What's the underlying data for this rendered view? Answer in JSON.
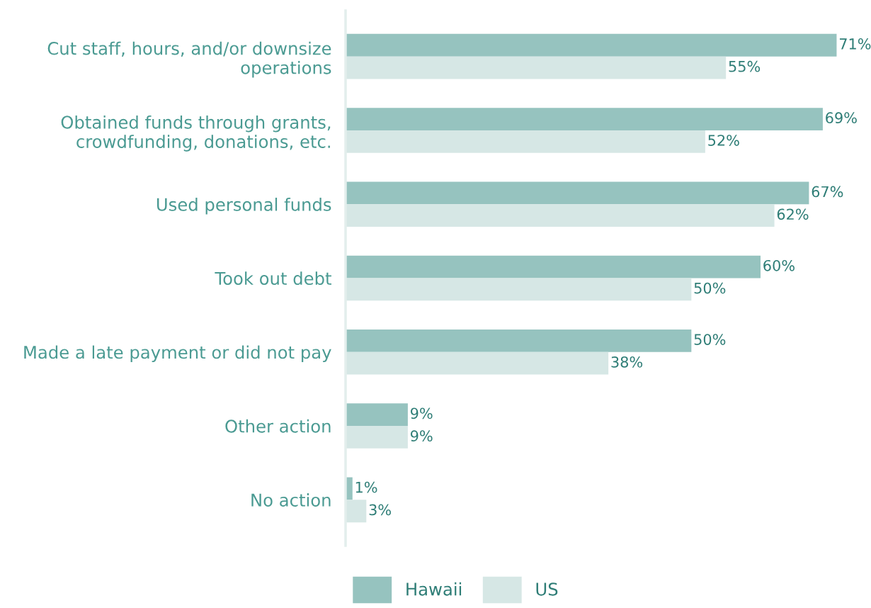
{
  "chart_data": {
    "type": "bar",
    "orientation": "horizontal",
    "categories": [
      "Cut staff, hours, and/or downsize\noperations",
      "Obtained funds through grants,\ncrowdfunding, donations, etc.",
      "Used personal funds",
      "Took out debt",
      "Made a late payment or did not pay",
      "Other action",
      "No action"
    ],
    "series": [
      {
        "name": "Hawaii",
        "color": "#96c3bf",
        "values": [
          71,
          69,
          67,
          60,
          50,
          9,
          1
        ],
        "value_labels": [
          "71%",
          "69%",
          "67%",
          "60%",
          "50%",
          "9%",
          "1%"
        ]
      },
      {
        "name": "US",
        "color": "#d6e7e5",
        "values": [
          55,
          52,
          62,
          50,
          38,
          9,
          3
        ],
        "value_labels": [
          "55%",
          "52%",
          "62%",
          "50%",
          "38%",
          "9%",
          "3%"
        ]
      }
    ],
    "legend": "bottom",
    "grid": false,
    "tick_labels": "y"
  }
}
